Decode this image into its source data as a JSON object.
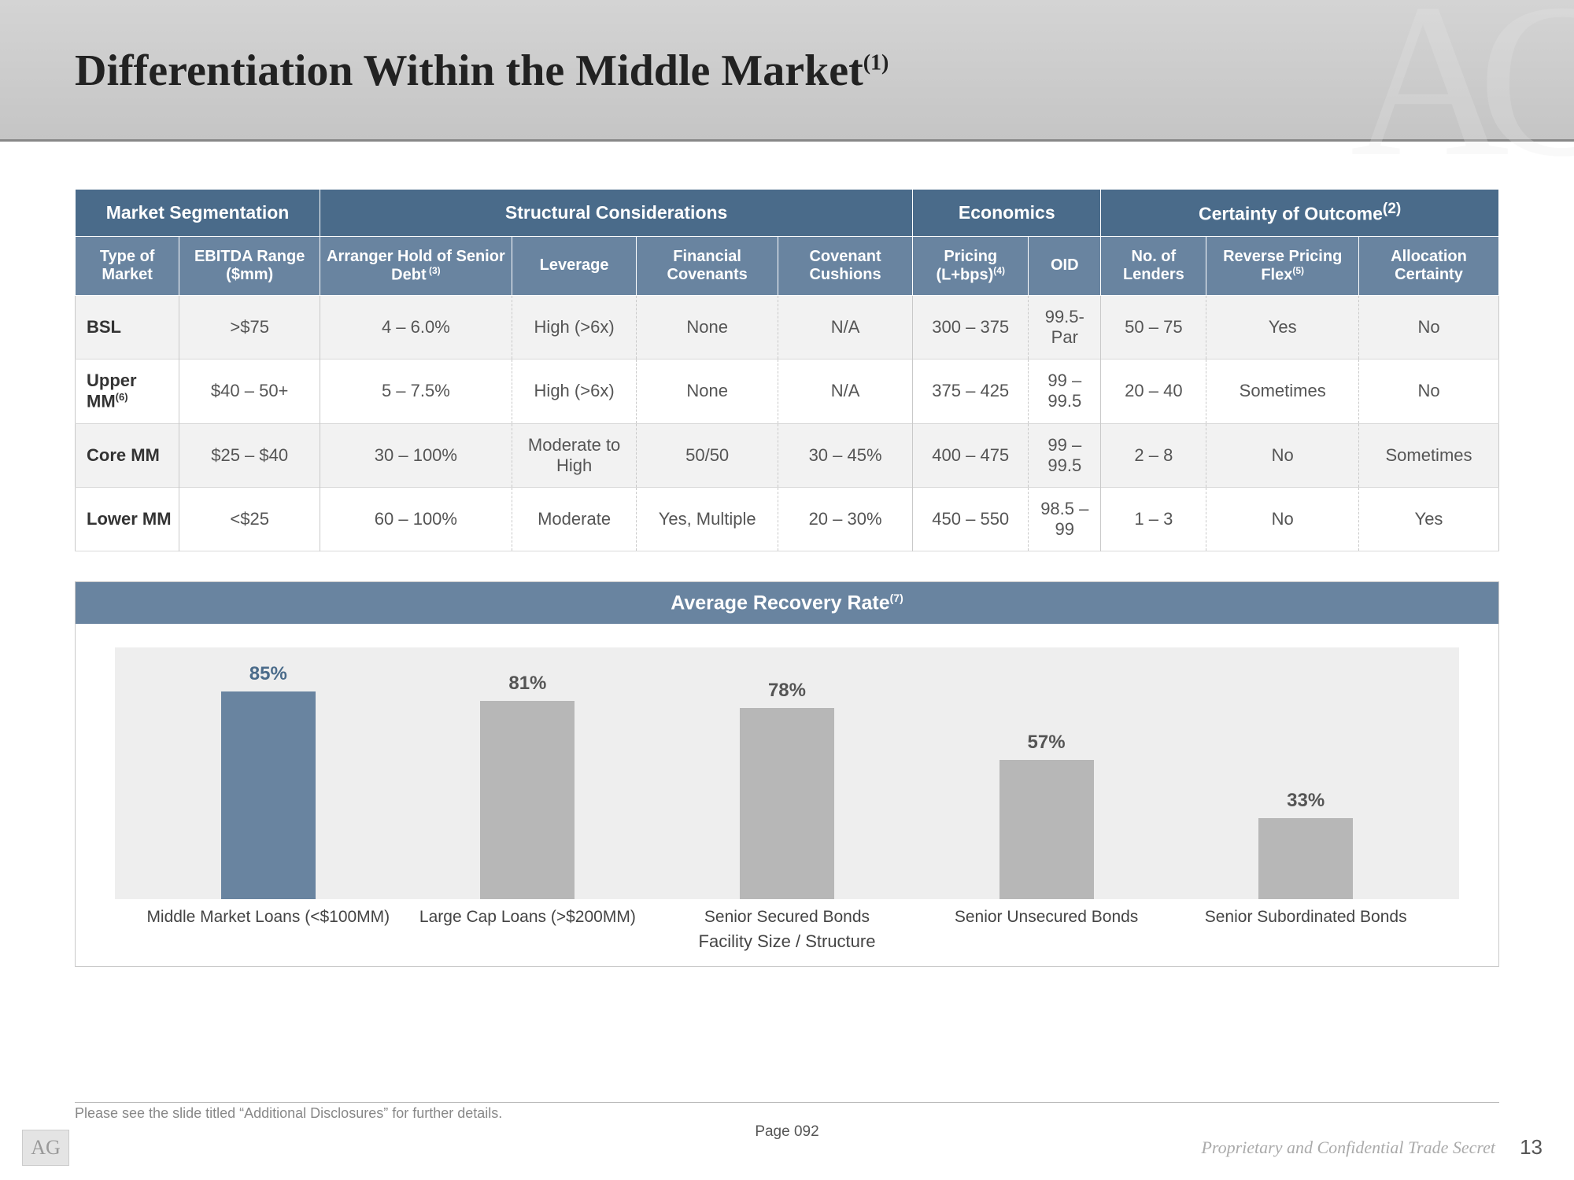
{
  "title": {
    "text": "Differentiation Within the Middle Market",
    "sup": "(1)"
  },
  "table": {
    "groups": [
      {
        "label": "Market Segmentation",
        "span": 2
      },
      {
        "label": "Structural Considerations",
        "span": 4
      },
      {
        "label": "Economics",
        "span": 2
      },
      {
        "label": "Certainty of Outcome",
        "sup": "(2)",
        "span": 3
      }
    ],
    "columns": [
      {
        "label": "Type of Market"
      },
      {
        "label": "EBITDA Range ($mm)"
      },
      {
        "label": "Arranger Hold of Senior Debt",
        "sup": " (3)"
      },
      {
        "label": "Leverage"
      },
      {
        "label": "Financial Covenants"
      },
      {
        "label": "Covenant Cushions"
      },
      {
        "label": "Pricing (L+bps)",
        "sup": "(4)"
      },
      {
        "label": "OID"
      },
      {
        "label": "No. of Lenders"
      },
      {
        "label": "Reverse Pricing Flex",
        "sup": "(5)"
      },
      {
        "label": "Allocation Certainty"
      }
    ],
    "rows": [
      {
        "cells": [
          "BSL",
          ">$75",
          "4 – 6.0%",
          "High (>6x)",
          "None",
          "N/A",
          "300 – 375",
          "99.5-Par",
          "50 – 75",
          "Yes",
          "No"
        ]
      },
      {
        "cells": [
          "Upper MM",
          "$40 – 50+",
          "5 – 7.5%",
          "High (>6x)",
          "None",
          "N/A",
          "375 – 425",
          "99 – 99.5",
          "20 – 40",
          "Sometimes",
          "No"
        ],
        "sup0": "(6)"
      },
      {
        "cells": [
          "Core MM",
          "$25 – $40",
          "30 – 100%",
          "Moderate to High",
          "50/50",
          "30 – 45%",
          "400 – 475",
          "99 – 99.5",
          "2 – 8",
          "No",
          "Sometimes"
        ]
      },
      {
        "cells": [
          "Lower MM",
          "<$25",
          "60 – 100%",
          "Moderate",
          "Yes, Multiple",
          "20 – 30%",
          "450 – 550",
          "98.5 – 99",
          "1 – 3",
          "No",
          "Yes"
        ]
      }
    ],
    "solid_after_cols": [
      1,
      5,
      7
    ]
  },
  "chart": {
    "title": "Average Recovery Rate",
    "title_sup": "(7)",
    "axis_title": "Facility Size / Structure",
    "plot_bg": "#eeeeee",
    "ymax": 90,
    "bars": [
      {
        "label": "85%",
        "value": 85,
        "color": "#6984a0",
        "label_color": "#4a6b8a",
        "cat": "Middle Market Loans (<$100MM)"
      },
      {
        "label": "81%",
        "value": 81,
        "color": "#b7b7b7",
        "label_color": "#555555",
        "cat": "Large Cap Loans (>$200MM)"
      },
      {
        "label": "78%",
        "value": 78,
        "color": "#b7b7b7",
        "label_color": "#555555",
        "cat": "Senior Secured Bonds"
      },
      {
        "label": "57%",
        "value": 57,
        "color": "#b7b7b7",
        "label_color": "#555555",
        "cat": "Senior Unsecured Bonds"
      },
      {
        "label": "33%",
        "value": 33,
        "color": "#b7b7b7",
        "label_color": "#555555",
        "cat": "Senior Subordinated Bonds"
      }
    ]
  },
  "footer": {
    "footnote": "Please see the slide titled “Additional Disclosures” for further details.",
    "page": "Page 092",
    "confidential": "Proprietary and Confidential Trade Secret",
    "slide_num": "13",
    "logo": "AG"
  }
}
